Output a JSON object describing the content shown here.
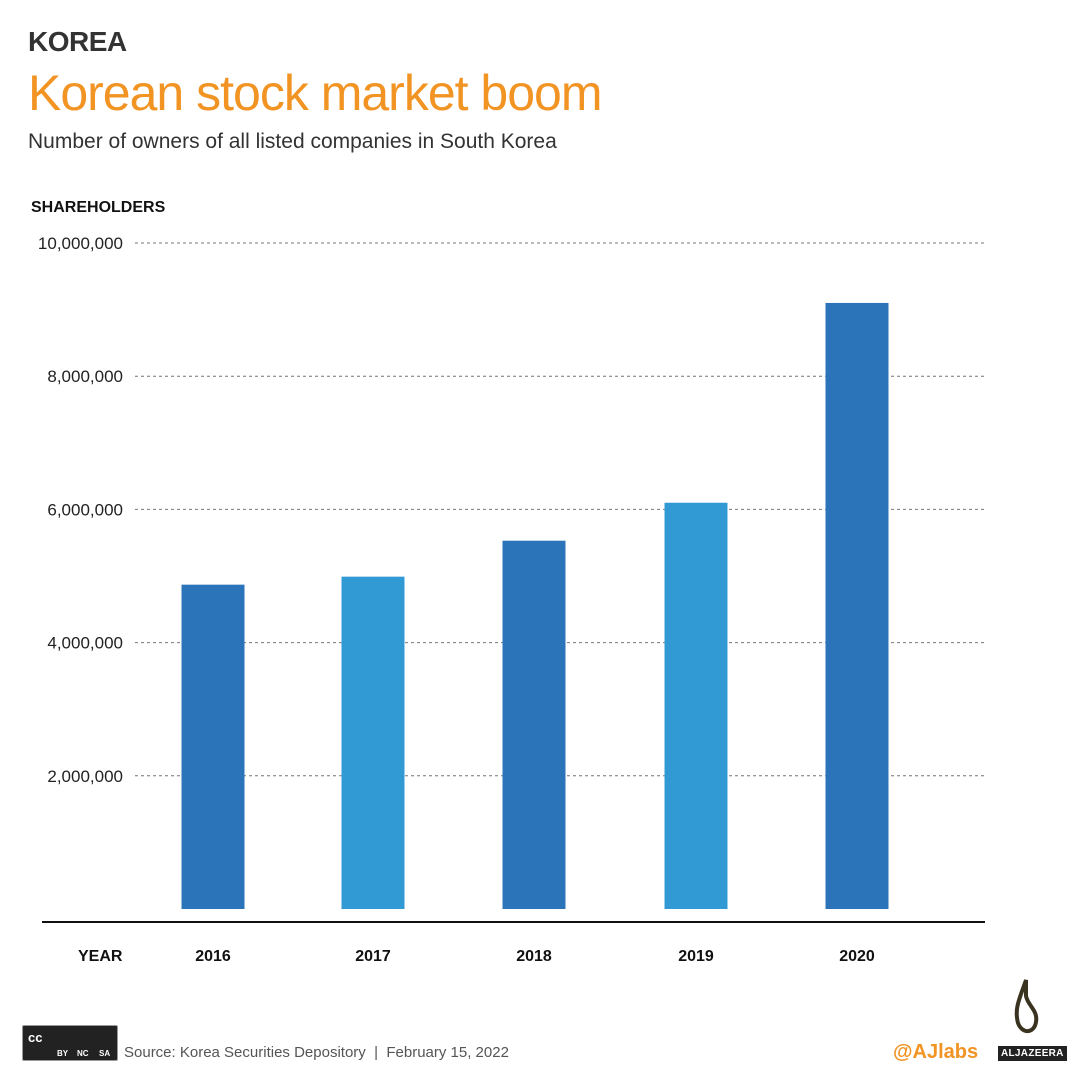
{
  "header": {
    "kicker": "KOREA",
    "title": "Korean stock market boom",
    "subtitle": "Number of owners of all listed companies in South Korea"
  },
  "chart_data": {
    "type": "bar",
    "ylabel": "SHAREHOLDERS",
    "xlabel": "YEAR",
    "categories": [
      "2016",
      "2017",
      "2018",
      "2019",
      "2020"
    ],
    "values": [
      4870000,
      4990000,
      5530000,
      6100000,
      9100000
    ],
    "ylim": [
      0,
      10000000
    ],
    "yticks": [
      2000000,
      4000000,
      6000000,
      8000000,
      10000000
    ],
    "ytick_labels": [
      "2,000,000",
      "4,000,000",
      "6,000,000",
      "8,000,000",
      "10,000,000"
    ],
    "grid": "dashed horizontal",
    "colors": [
      "#2b74ba",
      "#3199d4",
      "#2b74ba",
      "#3199d4",
      "#2b74ba"
    ]
  },
  "footer": {
    "source": "Source: Korea Securities Depository  |  February 15, 2022",
    "handle": "@AJlabs",
    "brand": "ALJAZEERA",
    "license": [
      "cc",
      "BY",
      "NC",
      "SA"
    ]
  }
}
